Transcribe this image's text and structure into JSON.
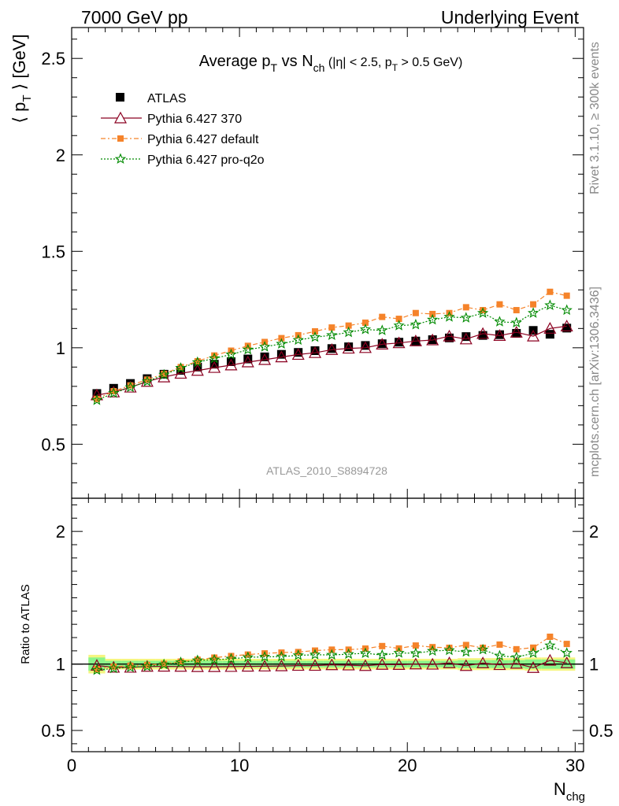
{
  "header": {
    "left": "7000 GeV pp",
    "right": "Underlying Event"
  },
  "side_labels": {
    "rivet": "Rivet 3.1.10, ≥ 300k events",
    "mcplots": "mcplots.cern.ch [arXiv:1306.3436]"
  },
  "colors": {
    "atlas": "#000000",
    "pythia_370": "#8b0020",
    "pythia_default": "#f5832a",
    "pythia_proq2o": "#008a00",
    "band_inner": "#8af58a",
    "band_outer": "#f5f580"
  },
  "chart_data": [
    {
      "type": "line",
      "title": "Average p_T vs N_ch (|η| < 2.5, p_T > 0.5 GeV)",
      "title_parts": {
        "main1": "Average p",
        "sub1": "T",
        "main2": " vs N",
        "sub2": "ch",
        "cut1": " (|η| < 2.5, p",
        "sub3": "T",
        "cut2": " > 0.5 GeV)"
      },
      "ylabel": "⟨ p_T ⟩ [GeV]",
      "ylabel_parts": {
        "open": "⟨ p",
        "sub": "T",
        "close": " ⟩ [GeV]"
      },
      "watermark": "ATLAS_2010_S8894728",
      "xlim": [
        0,
        30.5
      ],
      "ylim": [
        0.22,
        2.66
      ],
      "yticks": [
        0.5,
        1,
        1.5,
        2,
        2.5
      ],
      "ytick_labels": [
        "0.5",
        "1",
        "1.5",
        "2",
        "2.5"
      ],
      "legend_position": "top-left",
      "x": [
        1.5,
        2.5,
        3.5,
        4.5,
        5.5,
        6.5,
        7.5,
        8.5,
        9.5,
        10.5,
        11.5,
        12.5,
        13.5,
        14.5,
        15.5,
        16.5,
        17.5,
        18.5,
        19.5,
        20.5,
        21.5,
        22.5,
        23.5,
        24.5,
        25.5,
        26.5,
        27.5,
        28.5,
        29.5
      ],
      "series": [
        {
          "name": "ATLAS",
          "marker": "square",
          "color": "#000000",
          "values": [
            0.763,
            0.79,
            0.815,
            0.84,
            0.863,
            0.883,
            0.9,
            0.915,
            0.928,
            0.942,
            0.953,
            0.966,
            0.976,
            0.985,
            0.996,
            1.005,
            1.012,
            1.021,
            1.029,
            1.035,
            1.042,
            1.051,
            1.058,
            1.064,
            1.068,
            1.075,
            1.09,
            1.07,
            1.102
          ]
        },
        {
          "name": "Pythia 6.427 370",
          "marker": "triangle",
          "color": "#8b0020",
          "values": [
            0.755,
            0.77,
            0.795,
            0.825,
            0.848,
            0.867,
            0.882,
            0.897,
            0.91,
            0.926,
            0.938,
            0.952,
            0.965,
            0.974,
            0.99,
            0.997,
            1.0,
            1.018,
            1.025,
            1.035,
            1.04,
            1.06,
            1.045,
            1.073,
            1.063,
            1.08,
            1.06,
            1.1,
            1.112
          ]
        },
        {
          "name": "Pythia 6.427 default",
          "marker": "square-small",
          "color": "#f5832a",
          "values": [
            0.735,
            0.775,
            0.805,
            0.835,
            0.865,
            0.9,
            0.93,
            0.96,
            0.985,
            1.01,
            1.03,
            1.05,
            1.065,
            1.085,
            1.105,
            1.115,
            1.13,
            1.16,
            1.15,
            1.18,
            1.175,
            1.18,
            1.21,
            1.195,
            1.225,
            1.195,
            1.225,
            1.29,
            1.27
          ]
        },
        {
          "name": "Pythia 6.427 pro-q2o",
          "marker": "star",
          "color": "#008a00",
          "values": [
            0.728,
            0.765,
            0.795,
            0.825,
            0.86,
            0.895,
            0.925,
            0.945,
            0.965,
            0.99,
            1.005,
            1.02,
            1.04,
            1.055,
            1.065,
            1.08,
            1.095,
            1.09,
            1.115,
            1.12,
            1.145,
            1.16,
            1.155,
            1.18,
            1.135,
            1.13,
            1.18,
            1.22,
            1.195
          ]
        }
      ]
    },
    {
      "type": "line",
      "title": "",
      "xlabel": "N_chg",
      "xlabel_parts": {
        "main": "N",
        "sub": "chg"
      },
      "ylabel": "Ratio to ATLAS",
      "xlim": [
        0,
        30.5
      ],
      "ylim": [
        0.34,
        2.25
      ],
      "xticks": [
        0,
        10,
        20,
        30
      ],
      "xtick_labels": [
        "0",
        "10",
        "20",
        "30"
      ],
      "yticks": [
        0.5,
        1,
        2
      ],
      "ytick_labels": [
        "0.5",
        "1",
        "2"
      ],
      "x": [
        1.5,
        2.5,
        3.5,
        4.5,
        5.5,
        6.5,
        7.5,
        8.5,
        9.5,
        10.5,
        11.5,
        12.5,
        13.5,
        14.5,
        15.5,
        16.5,
        17.5,
        18.5,
        19.5,
        20.5,
        21.5,
        22.5,
        23.5,
        24.5,
        25.5,
        26.5,
        27.5,
        28.5,
        29.5
      ],
      "band_inner": [
        0.05,
        0.025,
        0.025,
        0.025,
        0.025,
        0.025,
        0.025,
        0.025,
        0.025,
        0.025,
        0.025,
        0.025,
        0.025,
        0.025,
        0.025,
        0.025,
        0.025,
        0.025,
        0.025,
        0.025,
        0.025,
        0.025,
        0.03,
        0.03,
        0.03,
        0.03,
        0.035,
        0.035,
        0.035
      ],
      "band_outer": [
        0.07,
        0.04,
        0.04,
        0.04,
        0.04,
        0.04,
        0.04,
        0.04,
        0.04,
        0.04,
        0.04,
        0.04,
        0.04,
        0.04,
        0.04,
        0.04,
        0.04,
        0.04,
        0.04,
        0.04,
        0.04,
        0.04,
        0.045,
        0.045,
        0.045,
        0.045,
        0.05,
        0.05,
        0.05
      ],
      "series": [
        {
          "name": "Pythia 6.427 370",
          "marker": "triangle",
          "color": "#8b0020",
          "values": [
            0.99,
            0.975,
            0.975,
            0.982,
            0.983,
            0.982,
            0.98,
            0.98,
            0.981,
            0.983,
            0.984,
            0.986,
            0.989,
            0.989,
            0.994,
            0.992,
            0.988,
            0.997,
            0.996,
            1.0,
            0.998,
            1.009,
            0.988,
            1.008,
            0.995,
            1.005,
            0.973,
            1.028,
            1.009
          ]
        },
        {
          "name": "Pythia 6.427 default",
          "marker": "square-small",
          "color": "#f5832a",
          "values": [
            0.963,
            0.981,
            0.988,
            0.994,
            1.002,
            1.019,
            1.033,
            1.049,
            1.061,
            1.072,
            1.081,
            1.087,
            1.091,
            1.102,
            1.109,
            1.109,
            1.117,
            1.136,
            1.118,
            1.14,
            1.128,
            1.123,
            1.144,
            1.123,
            1.147,
            1.112,
            1.124,
            1.206,
            1.152
          ]
        },
        {
          "name": "Pythia 6.427 pro-q2o",
          "marker": "star",
          "color": "#008a00",
          "values": [
            0.954,
            0.968,
            0.975,
            0.982,
            0.997,
            1.013,
            1.028,
            1.033,
            1.04,
            1.051,
            1.055,
            1.056,
            1.066,
            1.071,
            1.069,
            1.075,
            1.082,
            1.068,
            1.084,
            1.082,
            1.099,
            1.104,
            1.092,
            1.109,
            1.063,
            1.051,
            1.083,
            1.14,
            1.084
          ]
        }
      ]
    }
  ]
}
